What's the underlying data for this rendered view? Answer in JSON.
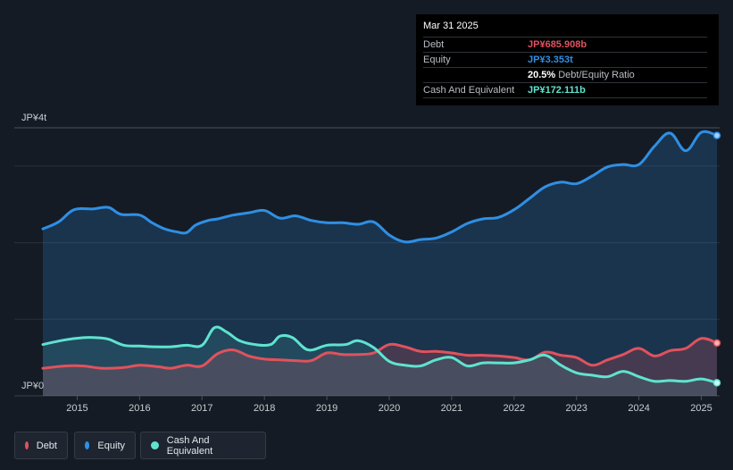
{
  "colors": {
    "debt": "#e0525d",
    "equity": "#2f8fe4",
    "cash": "#5fe3cf",
    "grid": "#2a313b",
    "axis_text": "#c9cdd2"
  },
  "tooltip": {
    "date": "Mar 31 2025",
    "rows": [
      {
        "label": "Debt",
        "value": "JP¥685.908b"
      },
      {
        "label": "Equity",
        "value": "JP¥3.353t"
      },
      {
        "label": "",
        "value": "20.5%",
        "suffix": "Debt/Equity Ratio"
      },
      {
        "label": "Cash And Equivalent",
        "value": "JP¥172.111b"
      }
    ]
  },
  "legend": [
    {
      "label": "Debt"
    },
    {
      "label": "Equity"
    },
    {
      "label": "Cash And Equivalent"
    }
  ],
  "chart_data": {
    "type": "area",
    "title": "",
    "unit": "JP¥ trillions",
    "ylim": [
      0,
      3.5
    ],
    "y_tick_labels": [
      {
        "value": 3.5,
        "label": "JP¥4t"
      },
      {
        "value": 0,
        "label": "JP¥0"
      }
    ],
    "xlim": [
      2014.45,
      2025.25
    ],
    "x_ticks": [
      2015,
      2016,
      2017,
      2018,
      2019,
      2020,
      2021,
      2022,
      2023,
      2024,
      2025
    ],
    "x_tick_labels": [
      "2015",
      "2016",
      "2017",
      "2018",
      "2019",
      "2020",
      "2021",
      "2022",
      "2023",
      "2024",
      "2025"
    ],
    "series": [
      {
        "name": "Equity",
        "key": "equity",
        "x": [
          2014.45,
          2014.7,
          2014.95,
          2015.25,
          2015.5,
          2015.7,
          2016.0,
          2016.2,
          2016.4,
          2016.6,
          2016.75,
          2016.9,
          2017.1,
          2017.25,
          2017.5,
          2017.75,
          2018.0,
          2018.25,
          2018.5,
          2018.75,
          2019.0,
          2019.25,
          2019.5,
          2019.75,
          2020.0,
          2020.25,
          2020.5,
          2020.75,
          2021.0,
          2021.25,
          2021.5,
          2021.75,
          2022.0,
          2022.25,
          2022.5,
          2022.75,
          2023.0,
          2023.25,
          2023.5,
          2023.75,
          2024.0,
          2024.25,
          2024.5,
          2024.75,
          2025.0,
          2025.25
        ],
        "values": [
          2.18,
          2.27,
          2.43,
          2.44,
          2.46,
          2.37,
          2.36,
          2.26,
          2.18,
          2.14,
          2.13,
          2.23,
          2.29,
          2.31,
          2.36,
          2.39,
          2.42,
          2.32,
          2.35,
          2.29,
          2.26,
          2.26,
          2.24,
          2.27,
          2.1,
          2.01,
          2.04,
          2.06,
          2.14,
          2.25,
          2.31,
          2.33,
          2.43,
          2.58,
          2.73,
          2.79,
          2.77,
          2.87,
          2.99,
          3.02,
          3.02,
          3.26,
          3.43,
          3.2,
          3.44,
          3.4
        ]
      },
      {
        "name": "Debt",
        "key": "debt",
        "x": [
          2014.45,
          2014.8,
          2015.1,
          2015.4,
          2015.75,
          2016.0,
          2016.3,
          2016.5,
          2016.75,
          2017.0,
          2017.25,
          2017.5,
          2017.75,
          2018.0,
          2018.25,
          2018.5,
          2018.75,
          2019.0,
          2019.25,
          2019.5,
          2019.75,
          2020.0,
          2020.25,
          2020.5,
          2020.75,
          2021.0,
          2021.25,
          2021.5,
          2021.75,
          2022.0,
          2022.25,
          2022.5,
          2022.75,
          2023.0,
          2023.25,
          2023.5,
          2023.75,
          2024.0,
          2024.25,
          2024.5,
          2024.75,
          2025.0,
          2025.25
        ],
        "values": [
          0.36,
          0.39,
          0.39,
          0.36,
          0.37,
          0.4,
          0.38,
          0.36,
          0.4,
          0.39,
          0.55,
          0.6,
          0.52,
          0.48,
          0.47,
          0.46,
          0.46,
          0.56,
          0.54,
          0.54,
          0.56,
          0.67,
          0.64,
          0.58,
          0.58,
          0.56,
          0.53,
          0.53,
          0.52,
          0.5,
          0.47,
          0.57,
          0.53,
          0.5,
          0.4,
          0.47,
          0.54,
          0.62,
          0.52,
          0.59,
          0.62,
          0.75,
          0.69
        ]
      },
      {
        "name": "Cash And Equivalent",
        "key": "cash",
        "x": [
          2014.45,
          2014.8,
          2015.1,
          2015.3,
          2015.5,
          2015.75,
          2016.0,
          2016.25,
          2016.5,
          2016.75,
          2017.0,
          2017.2,
          2017.4,
          2017.6,
          2017.85,
          2018.1,
          2018.25,
          2018.45,
          2018.7,
          2019.0,
          2019.3,
          2019.5,
          2019.75,
          2020.0,
          2020.25,
          2020.5,
          2020.75,
          2021.0,
          2021.25,
          2021.5,
          2021.75,
          2022.0,
          2022.25,
          2022.5,
          2022.75,
          2023.0,
          2023.25,
          2023.5,
          2023.75,
          2024.0,
          2024.25,
          2024.5,
          2024.75,
          2025.0,
          2025.25
        ],
        "values": [
          0.67,
          0.73,
          0.76,
          0.76,
          0.74,
          0.66,
          0.65,
          0.64,
          0.64,
          0.66,
          0.66,
          0.89,
          0.83,
          0.72,
          0.67,
          0.67,
          0.78,
          0.76,
          0.6,
          0.66,
          0.67,
          0.72,
          0.63,
          0.45,
          0.4,
          0.39,
          0.47,
          0.5,
          0.39,
          0.43,
          0.43,
          0.43,
          0.47,
          0.53,
          0.4,
          0.3,
          0.27,
          0.25,
          0.32,
          0.25,
          0.19,
          0.2,
          0.19,
          0.22,
          0.17
        ]
      }
    ]
  }
}
